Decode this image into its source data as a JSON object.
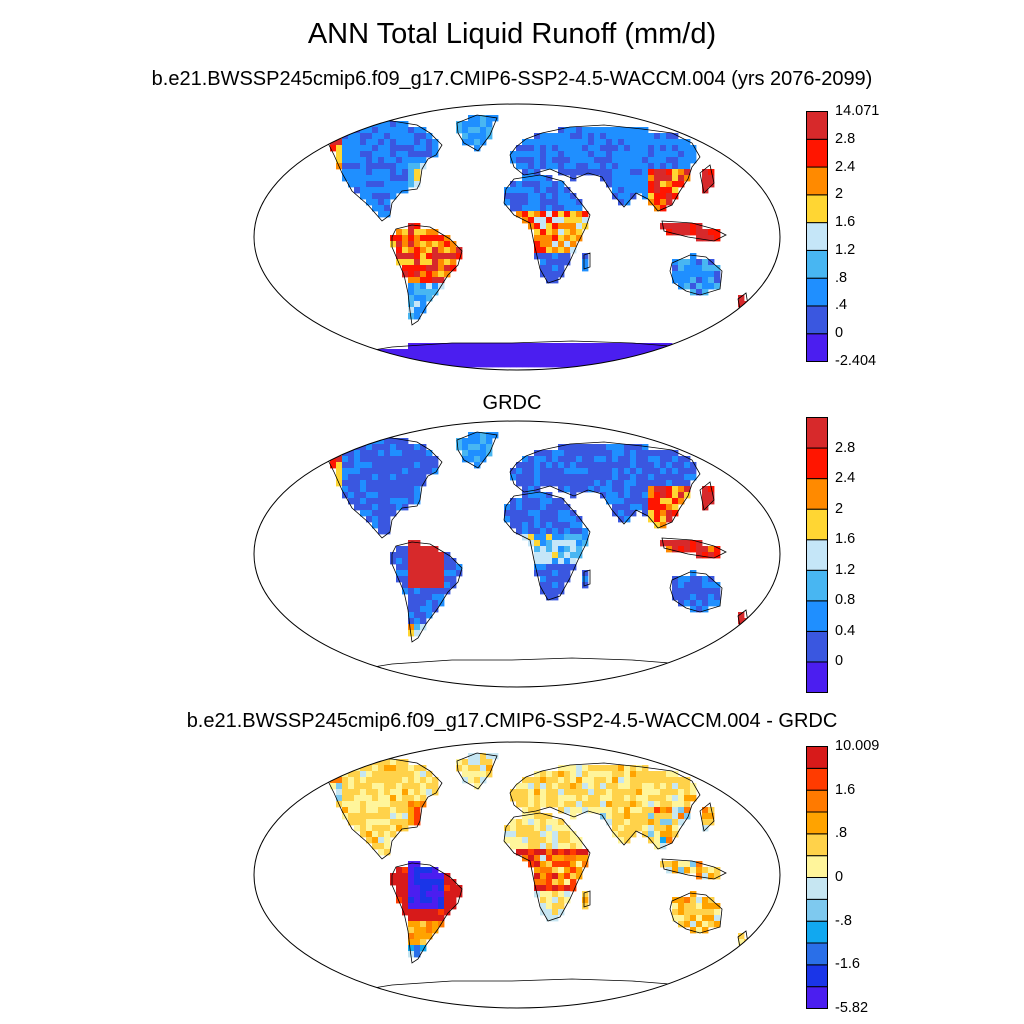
{
  "figure": {
    "title": "ANN Total Liquid Runoff (mm/d)"
  },
  "panels": [
    {
      "id": "model",
      "subtitle": "b.e21.BWSSP245cmip6.f09_g17.CMIP6-SSP2-4.5-WACCM.004 (yrs 2076-2099)",
      "field": "model",
      "colorbar": {
        "colors": [
          "#4b1ef0",
          "#3a57e0",
          "#1f8fff",
          "#48b6f2",
          "#c5e6f8",
          "#ffd633",
          "#ff8a00",
          "#ff1500",
          "#d7292b"
        ],
        "labels": [
          "-2.404",
          "0",
          ".4",
          ".8",
          "1.2",
          "1.6",
          "2",
          "2.4",
          "2.8",
          "14.071"
        ]
      }
    },
    {
      "id": "obs",
      "subtitle": "GRDC",
      "field": "obs",
      "colorbar": {
        "colors": [
          "#4b1ef0",
          "#3a57e0",
          "#1f8fff",
          "#48b6f2",
          "#c5e6f8",
          "#ffd633",
          "#ff8a00",
          "#ff1500",
          "#d7292b"
        ],
        "labels": [
          "",
          "0",
          "0.4",
          "0.8",
          "1.2",
          "1.6",
          "2",
          "2.4",
          "2.8",
          ""
        ]
      }
    },
    {
      "id": "diff",
      "subtitle": "b.e21.BWSSP245cmip6.f09_g17.CMIP6-SSP2-4.5-WACCM.004 - GRDC",
      "field": "diff",
      "colorbar": {
        "colors": [
          "#4b1ef0",
          "#1a35e8",
          "#2a6fe8",
          "#11a8f0",
          "#7ec9ef",
          "#c6e6f2",
          "#fff59b",
          "#ffd24a",
          "#ffa300",
          "#ff7a00",
          "#ff3b00",
          "#d71a1a"
        ],
        "labels": [
          "-5.82",
          "",
          "-1.6",
          "",
          "-.8",
          "",
          "0",
          "",
          ".8",
          "",
          "1.6",
          "",
          "10.009"
        ]
      }
    }
  ]
}
